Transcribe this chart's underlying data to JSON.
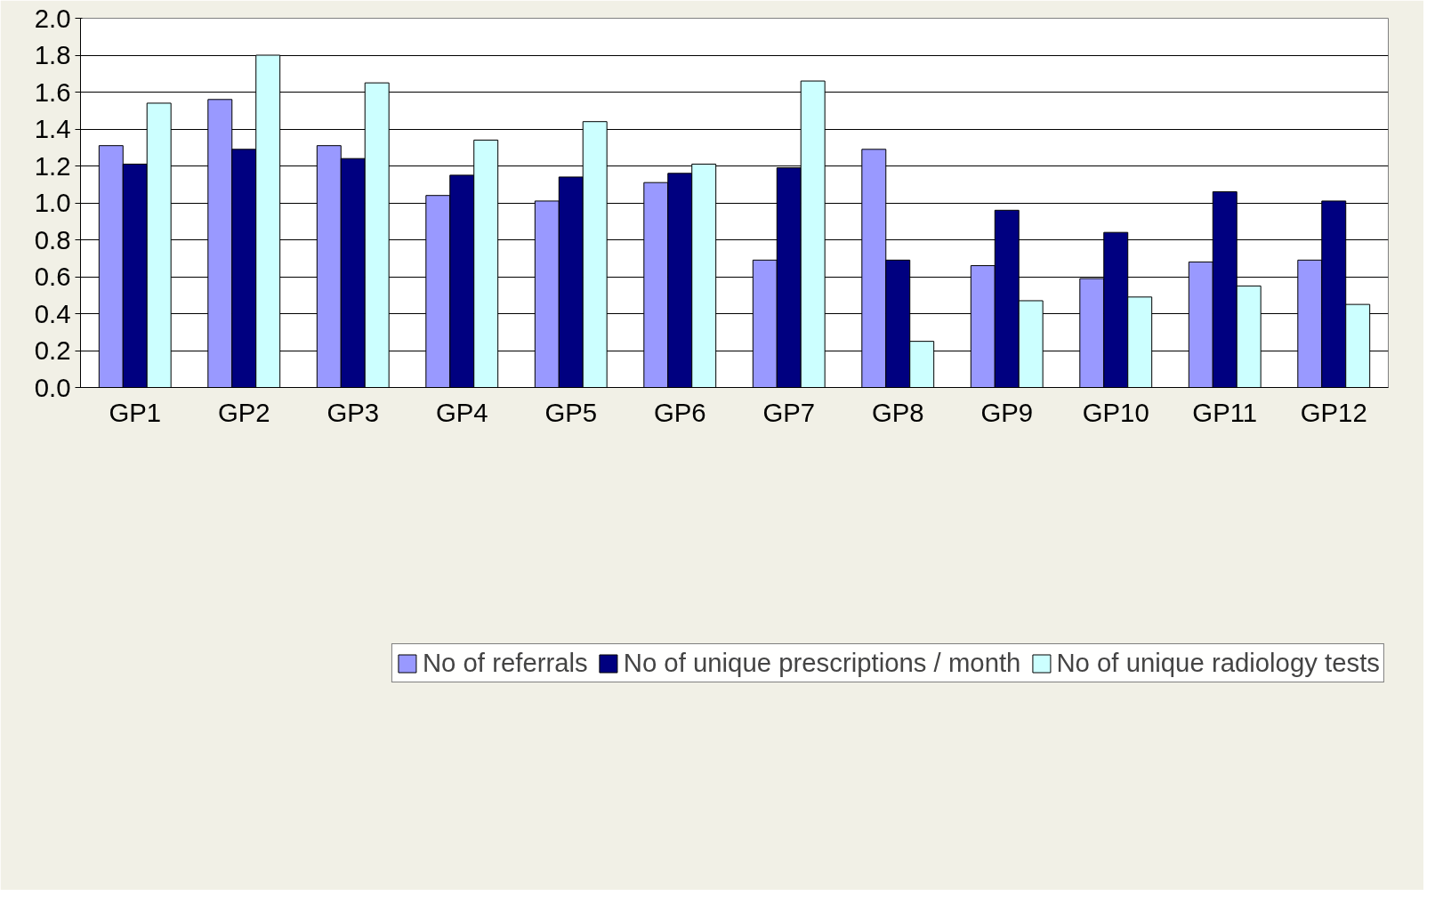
{
  "chart_data": {
    "type": "bar",
    "categories": [
      "GP1",
      "GP2",
      "GP3",
      "GP4",
      "GP5",
      "GP6",
      "GP7",
      "GP8",
      "GP9",
      "GP10",
      "GP11",
      "GP12"
    ],
    "series": [
      {
        "name": "No of referrals",
        "color": "#9999ff",
        "values": [
          1.31,
          1.56,
          1.31,
          1.04,
          1.01,
          1.11,
          0.69,
          1.29,
          0.66,
          0.59,
          0.68,
          0.69
        ]
      },
      {
        "name": "No of unique prescriptions / month",
        "color": "#000080",
        "values": [
          1.21,
          1.29,
          1.24,
          1.15,
          1.14,
          1.16,
          1.19,
          0.69,
          0.96,
          0.84,
          1.06,
          1.01
        ]
      },
      {
        "name": "No of unique radiology tests",
        "color": "#ccffff",
        "values": [
          1.54,
          1.8,
          1.65,
          1.34,
          1.44,
          1.21,
          1.66,
          0.25,
          0.47,
          0.49,
          0.55,
          0.45
        ]
      }
    ],
    "ylim": [
      0,
      2.0
    ],
    "yticks": [
      {
        "value": 0,
        "label": "0.0"
      },
      {
        "value": 0.2,
        "label": "0.2"
      },
      {
        "value": 0.4,
        "label": "0.4"
      },
      {
        "value": 0.6,
        "label": "0.6"
      },
      {
        "value": 0.8,
        "label": "0.8"
      },
      {
        "value": 1.0,
        "label": "1.0"
      },
      {
        "value": 1.2,
        "label": "1.2"
      },
      {
        "value": 1.4,
        "label": "1.4"
      },
      {
        "value": 1.6,
        "label": "1.6"
      },
      {
        "value": 1.8,
        "label": "1.8"
      },
      {
        "value": 2.0,
        "label": "2.0"
      }
    ],
    "grid": "y",
    "legend": "bottom"
  }
}
